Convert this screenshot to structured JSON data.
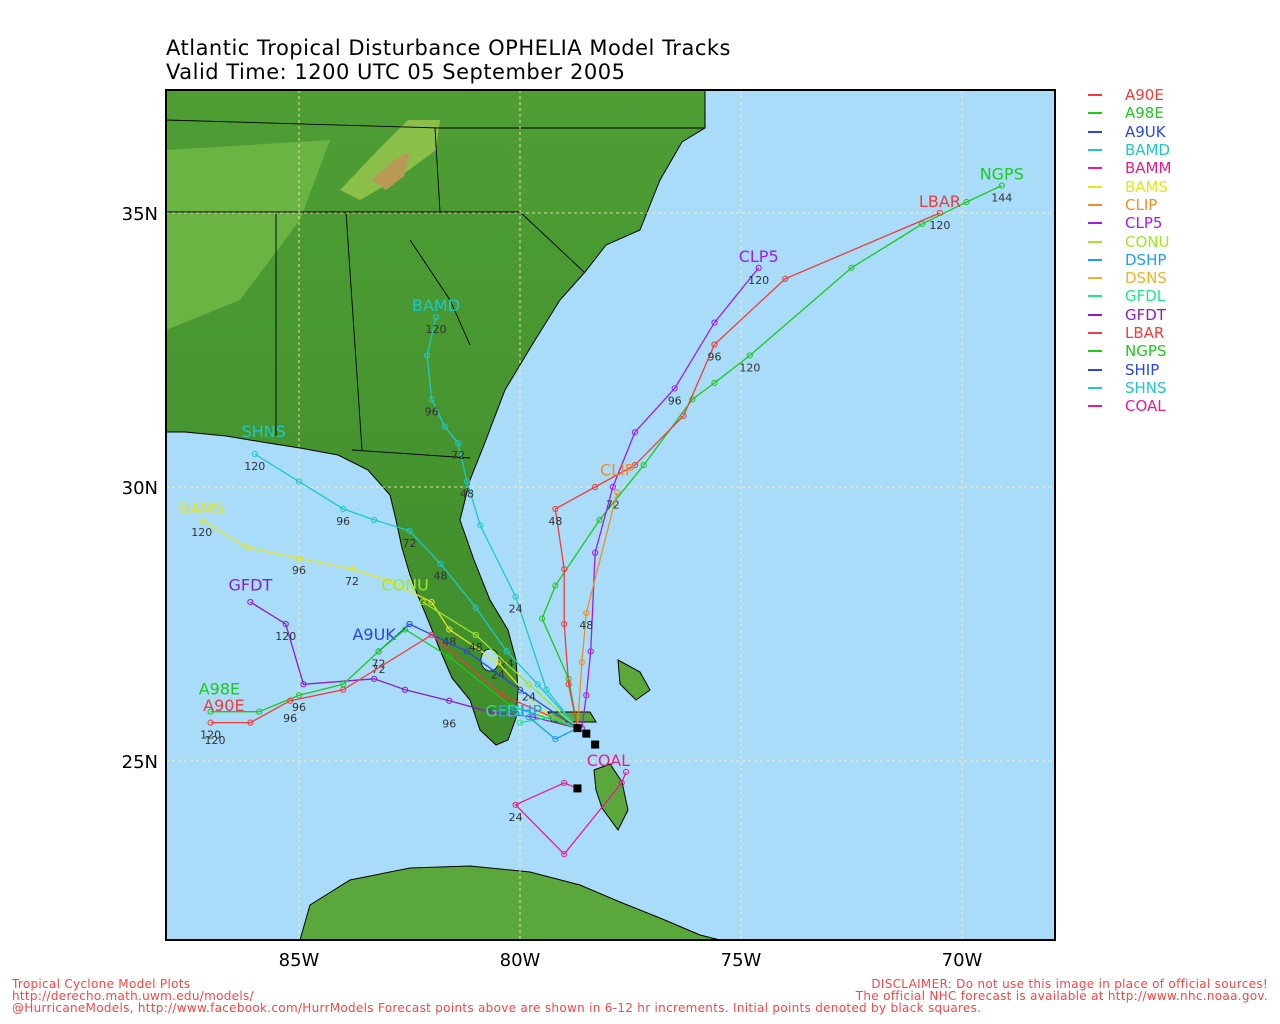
{
  "header": {
    "title": "Atlantic Tropical Disturbance OPHELIA Model Tracks",
    "subtitle": "Valid Time: 1200 UTC 05 September 2005"
  },
  "axes": {
    "x_labels": [
      "85W",
      "80W",
      "75W",
      "70W"
    ],
    "y_labels": [
      "35N",
      "30N",
      "25N"
    ]
  },
  "colors": {
    "ocean": "#a8dcf8",
    "land": "#5aa83c",
    "land_dark": "#3c8a2a",
    "footer_text": "#f04848"
  },
  "legend": [
    {
      "name": "A90E",
      "color": "#f03c3c"
    },
    {
      "name": "A98E",
      "color": "#1ec81e"
    },
    {
      "name": "A9UK",
      "color": "#2846e6"
    },
    {
      "name": "BAMD",
      "color": "#1ec8c8"
    },
    {
      "name": "BAMM",
      "color": "#e61e8c"
    },
    {
      "name": "BAMS",
      "color": "#e6e61e"
    },
    {
      "name": "CLIP",
      "color": "#f08c28"
    },
    {
      "name": "CLP5",
      "color": "#a01ee6"
    },
    {
      "name": "CONU",
      "color": "#a0e628"
    },
    {
      "name": "DSHP",
      "color": "#1ea0f0"
    },
    {
      "name": "DSNS",
      "color": "#f0b428"
    },
    {
      "name": "GFDL",
      "color": "#1ee68c"
    },
    {
      "name": "GFDT",
      "color": "#8c1ec8"
    },
    {
      "name": "LBAR",
      "color": "#f03c3c"
    },
    {
      "name": "NGPS",
      "color": "#1ec81e"
    },
    {
      "name": "SHIP",
      "color": "#2846e6"
    },
    {
      "name": "SHNS",
      "color": "#1ec8c8"
    },
    {
      "name": "COAL",
      "color": "#e61e8c"
    }
  ],
  "tracks": [
    {
      "name": "NGPS",
      "color": "#1ec81e",
      "label": "NGPS",
      "points": [
        [
          -78.7,
          25.6
        ],
        [
          -78.9,
          26.5
        ],
        [
          -79.5,
          27.6
        ],
        [
          -79.2,
          28.2
        ],
        [
          -78.2,
          29.4
        ],
        [
          -77.2,
          30.4
        ],
        [
          -76.1,
          31.6
        ],
        [
          -75.6,
          31.9
        ],
        [
          -74.8,
          32.4
        ],
        [
          -72.5,
          34.0
        ],
        [
          -70.9,
          34.8
        ],
        [
          -69.9,
          35.2
        ],
        [
          -69.1,
          35.5
        ]
      ],
      "hours": [
        {
          "t": "120",
          "at": [
            -74.8,
            32.4
          ]
        },
        {
          "t": "144",
          "at": [
            -69.1,
            35.5
          ]
        }
      ],
      "label_at": [
        -69.1,
        35.5
      ]
    },
    {
      "name": "LBAR",
      "color": "#f03c3c",
      "label": "LBAR",
      "points": [
        [
          -78.7,
          25.6
        ],
        [
          -78.9,
          26.4
        ],
        [
          -79.0,
          27.5
        ],
        [
          -79.0,
          28.5
        ],
        [
          -79.2,
          29.6
        ],
        [
          -78.3,
          30.0
        ],
        [
          -77.4,
          30.4
        ],
        [
          -76.3,
          31.3
        ],
        [
          -75.6,
          32.6
        ],
        [
          -74.0,
          33.8
        ],
        [
          -70.5,
          35.0
        ]
      ],
      "hours": [
        {
          "t": "48",
          "at": [
            -79.2,
            29.6
          ]
        },
        {
          "t": "96",
          "at": [
            -75.6,
            32.6
          ]
        },
        {
          "t": "120",
          "at": [
            -70.5,
            35.0
          ]
        }
      ],
      "label_at": [
        -70.5,
        35.0
      ]
    },
    {
      "name": "CLP5",
      "color": "#a01ee6",
      "label": "CLP5",
      "points": [
        [
          -78.6,
          25.6
        ],
        [
          -78.5,
          26.2
        ],
        [
          -78.4,
          27.0
        ],
        [
          -78.3,
          28.8
        ],
        [
          -77.9,
          30.0
        ],
        [
          -77.4,
          31.0
        ],
        [
          -76.5,
          31.8
        ],
        [
          -75.6,
          33.0
        ],
        [
          -74.6,
          34.0
        ]
      ],
      "hours": [
        {
          "t": "72",
          "at": [
            -77.9,
            29.9
          ]
        },
        {
          "t": "96",
          "at": [
            -76.5,
            31.8
          ]
        },
        {
          "t": "120",
          "at": [
            -74.6,
            34.0
          ]
        }
      ],
      "label_at": [
        -74.6,
        34.0
      ]
    },
    {
      "name": "CLIP",
      "color": "#f08c28",
      "label": "CLIP",
      "points": [
        [
          -78.7,
          25.6
        ],
        [
          -78.6,
          26.8
        ],
        [
          -78.5,
          27.7
        ],
        [
          -77.8,
          29.9
        ]
      ],
      "hours": [
        {
          "t": "48",
          "at": [
            -78.5,
            27.7
          ]
        }
      ],
      "label_at": [
        -77.8,
        30.1
      ]
    },
    {
      "name": "BAMD",
      "color": "#1ec8c8",
      "label": "BAMD",
      "points": [
        [
          -78.7,
          25.6
        ],
        [
          -79.4,
          26.3
        ],
        [
          -80.1,
          28.0
        ],
        [
          -80.9,
          29.3
        ],
        [
          -81.2,
          30.1
        ],
        [
          -81.4,
          30.8
        ],
        [
          -81.7,
          31.1
        ],
        [
          -82.0,
          31.6
        ],
        [
          -82.1,
          32.4
        ],
        [
          -81.9,
          33.1
        ]
      ],
      "hours": [
        {
          "t": "24",
          "at": [
            -80.1,
            28.0
          ]
        },
        {
          "t": "48",
          "at": [
            -81.2,
            30.1
          ]
        },
        {
          "t": "72",
          "at": [
            -81.4,
            30.8
          ]
        },
        {
          "t": "96",
          "at": [
            -82.0,
            31.6
          ]
        },
        {
          "t": "120",
          "at": [
            -81.9,
            33.1
          ]
        }
      ],
      "label_at": [
        -81.9,
        33.1
      ]
    },
    {
      "name": "SHNS",
      "color": "#1ec8c8",
      "label": "SHNS",
      "points": [
        [
          -78.7,
          25.6
        ],
        [
          -79.6,
          26.4
        ],
        [
          -80.3,
          27.0
        ],
        [
          -81.0,
          27.8
        ],
        [
          -81.8,
          28.6
        ],
        [
          -82.5,
          29.2
        ],
        [
          -83.3,
          29.4
        ],
        [
          -84.0,
          29.6
        ],
        [
          -85.0,
          30.1
        ],
        [
          -86.0,
          30.6
        ]
      ],
      "hours": [
        {
          "t": "24",
          "at": [
            -80.3,
            27.0
          ]
        },
        {
          "t": "48",
          "at": [
            -81.8,
            28.6
          ]
        },
        {
          "t": "72",
          "at": [
            -82.5,
            29.2
          ]
        },
        {
          "t": "96",
          "at": [
            -84.0,
            29.6
          ]
        },
        {
          "t": "120",
          "at": [
            -86.0,
            30.6
          ]
        }
      ],
      "label_at": [
        -85.8,
        30.8
      ]
    },
    {
      "name": "BAMS",
      "color": "#e6e61e",
      "label": "BAMS",
      "points": [
        [
          -78.7,
          25.6
        ],
        [
          -79.5,
          25.9
        ],
        [
          -80.5,
          26.8
        ],
        [
          -81.6,
          27.4
        ],
        [
          -82.0,
          27.9
        ],
        [
          -83.0,
          28.3
        ],
        [
          -83.8,
          28.5
        ],
        [
          -85.0,
          28.7
        ],
        [
          -86.2,
          28.9
        ],
        [
          -87.2,
          29.4
        ]
      ],
      "hours": [
        {
          "t": "24",
          "at": [
            -80.5,
            26.8
          ]
        },
        {
          "t": "48",
          "at": [
            -81.6,
            27.4
          ]
        },
        {
          "t": "72",
          "at": [
            -83.8,
            28.5
          ]
        },
        {
          "t": "96",
          "at": [
            -85.0,
            28.7
          ]
        },
        {
          "t": "120",
          "at": [
            -87.2,
            29.4
          ]
        }
      ],
      "label_at": [
        -87.2,
        29.4
      ]
    },
    {
      "name": "CONU",
      "color": "#a0e628",
      "label": "CONU",
      "points": [
        [
          -78.7,
          25.6
        ],
        [
          -79.8,
          26.4
        ],
        [
          -81.0,
          27.3
        ],
        [
          -82.2,
          27.9
        ]
      ],
      "hours": [
        {
          "t": "24",
          "at": [
            -79.8,
            26.4
          ]
        },
        {
          "t": "48",
          "at": [
            -81.0,
            27.3
          ]
        }
      ],
      "label_at": [
        -82.6,
        28.0
      ]
    },
    {
      "name": "A9UK",
      "color": "#2846e6",
      "label": "A9UK",
      "points": [
        [
          -78.7,
          25.6
        ],
        [
          -80.0,
          26.3
        ],
        [
          -81.2,
          27.0
        ],
        [
          -82.5,
          27.5
        ],
        [
          -83.2,
          27.0
        ]
      ],
      "hours": [
        {
          "t": "72",
          "at": [
            -83.2,
            26.9
          ]
        }
      ],
      "label_at": [
        -83.3,
        27.1
      ]
    },
    {
      "name": "GFDT",
      "color": "#8c1ec8",
      "label": "GFDT",
      "points": [
        [
          -78.7,
          25.6
        ],
        [
          -79.7,
          25.8
        ],
        [
          -80.7,
          25.9
        ],
        [
          -81.6,
          26.1
        ],
        [
          -82.6,
          26.3
        ],
        [
          -83.3,
          26.5
        ],
        [
          -84.9,
          26.4
        ],
        [
          -85.3,
          27.5
        ],
        [
          -86.1,
          27.9
        ]
      ],
      "hours": [
        {
          "t": "96",
          "at": [
            -81.6,
            25.9
          ]
        },
        {
          "t": "120",
          "at": [
            -85.3,
            27.5
          ]
        }
      ],
      "label_at": [
        -86.1,
        28.0
      ]
    },
    {
      "name": "A98E",
      "color": "#1ec81e",
      "label": "A98E",
      "points": [
        [
          -78.7,
          25.6
        ],
        [
          -80.2,
          26.0
        ],
        [
          -81.6,
          26.9
        ],
        [
          -82.6,
          27.4
        ],
        [
          -83.2,
          27.0
        ],
        [
          -84.0,
          26.4
        ],
        [
          -85.0,
          26.2
        ],
        [
          -85.9,
          25.9
        ],
        [
          -87.0,
          25.9
        ]
      ],
      "hours": [
        {
          "t": "72",
          "at": [
            -83.2,
            27.0
          ]
        },
        {
          "t": "96",
          "at": [
            -85.0,
            26.2
          ]
        },
        {
          "t": "120",
          "at": [
            -87.0,
            25.7
          ]
        }
      ],
      "label_at": [
        -86.8,
        26.1
      ]
    },
    {
      "name": "A90E",
      "color": "#f03c3c",
      "label": "A90E",
      "points": [
        [
          -78.7,
          25.6
        ],
        [
          -80.4,
          26.2
        ],
        [
          -82.0,
          27.3
        ],
        [
          -84.0,
          26.3
        ],
        [
          -85.2,
          26.1
        ],
        [
          -86.1,
          25.7
        ],
        [
          -87.0,
          25.7
        ]
      ],
      "hours": [
        {
          "t": "96",
          "at": [
            -85.2,
            26.0
          ]
        },
        {
          "t": "120",
          "at": [
            -86.9,
            25.6
          ]
        }
      ],
      "label_at": [
        -86.7,
        25.8
      ]
    },
    {
      "name": "GFDL",
      "color": "#1ee68c",
      "label": "GFDL",
      "points": [
        [
          -78.7,
          25.6
        ],
        [
          -79.3,
          25.8
        ],
        [
          -80.0,
          25.7
        ]
      ],
      "hours": [],
      "label_at": [
        -80.3,
        25.7
      ]
    },
    {
      "name": "DSHP",
      "color": "#1ea0f0",
      "label": "DSHP",
      "points": [
        [
          -78.7,
          25.6
        ],
        [
          -79.2,
          25.4
        ],
        [
          -79.8,
          25.8
        ]
      ],
      "hours": [],
      "label_at": [
        -80.0,
        25.7
      ]
    },
    {
      "name": "COAL",
      "color": "#e61e8c",
      "label": "COAL",
      "points": [
        [
          -78.7,
          24.5
        ],
        [
          -79.0,
          24.6
        ],
        [
          -80.1,
          24.2
        ],
        [
          -79.0,
          23.3
        ],
        [
          -77.7,
          24.6
        ],
        [
          -77.6,
          24.8
        ]
      ],
      "hours": [
        {
          "t": "24",
          "at": [
            -80.1,
            24.2
          ]
        }
      ],
      "label_at": [
        -78.0,
        24.8
      ]
    }
  ],
  "initial_points": [
    [
      -78.7,
      25.6
    ],
    [
      -78.5,
      25.5
    ],
    [
      -78.3,
      25.3
    ],
    [
      -78.7,
      24.5
    ]
  ],
  "footer": {
    "left1": "Tropical Cyclone Model Plots",
    "left2": "http://derecho.math.uwm.edu/models/",
    "left3": "@HurricaneModels, http://www.facebook.com/HurrModels  Forecast points above are shown in 6-12 hr increments. Initial points denoted by black squares.",
    "right1": "DISCLAIMER: Do not use this image in place of official sources!",
    "right2": "The official NHC forecast is available at http://www.nhc.noaa.gov."
  }
}
